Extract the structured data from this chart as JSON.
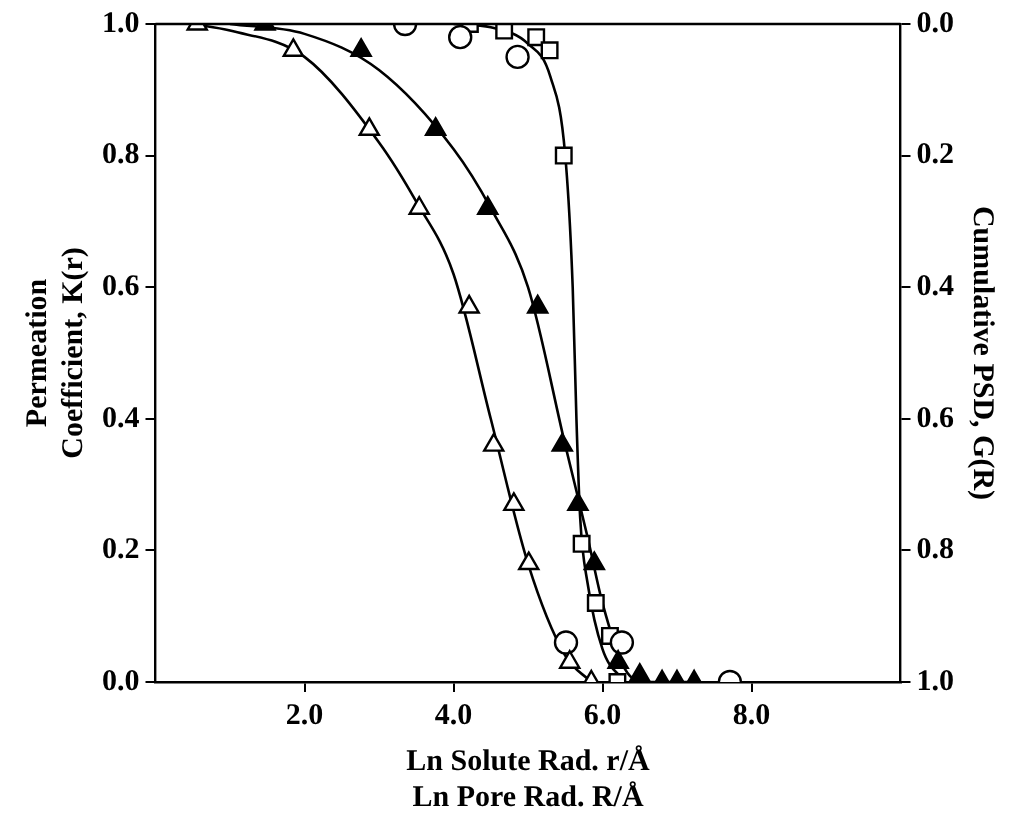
{
  "chart_data": {
    "type": "scatter",
    "xlabel": "Ln Solute Rad. r/Å\nLn Pore Rad. R/Å",
    "ylabel": "Permeation\nCoefficient, K(r)",
    "y2label": "Cumulative PSD, G(R)",
    "xlim": [
      0,
      10
    ],
    "xticks": [
      {
        "value": 2,
        "label": "2.0"
      },
      {
        "value": 4,
        "label": "4.0"
      },
      {
        "value": 6,
        "label": "6.0"
      },
      {
        "value": 8,
        "label": "8.0"
      }
    ],
    "ylim": [
      0,
      1
    ],
    "yticks": [
      {
        "value": 0,
        "label": "0.0"
      },
      0.2,
      0.4,
      0.6,
      0.8,
      {
        "value": 1,
        "label": "1.0"
      }
    ],
    "y2lim": [
      1,
      0
    ],
    "y2ticks": [
      {
        "value": 0,
        "label": "0.0"
      },
      0.2,
      0.4,
      0.6,
      0.8,
      {
        "value": 1,
        "label": "1.0"
      }
    ],
    "grid": false,
    "legend": false,
    "series": [
      {
        "type": "scatter",
        "marker": "triangle",
        "color": "#ffffff",
        "x": [
          0.56,
          1.85,
          2.87,
          3.54,
          4.21,
          4.54,
          4.81,
          5.01,
          5.56,
          5.85
        ],
        "values": [
          1.0,
          0.96,
          0.84,
          0.72,
          0.57,
          0.36,
          0.27,
          0.18,
          0.03,
          0.0
        ]
      },
      {
        "type": "scatter",
        "marker": "triangle",
        "color": "#000000",
        "x": [
          1.47,
          2.76,
          3.76,
          4.46,
          5.13,
          5.46,
          5.67,
          5.89,
          6.21,
          6.5,
          6.8,
          7.0,
          7.23
        ],
        "values": [
          1.0,
          0.96,
          0.84,
          0.72,
          0.57,
          0.36,
          0.27,
          0.18,
          0.03,
          0.01,
          0.0,
          0.0,
          0.0
        ]
      },
      {
        "type": "scatter",
        "marker": "circle",
        "color": "#ffffff",
        "x": [
          3.35,
          4.09,
          4.86,
          5.51,
          6.26,
          7.71
        ],
        "values": [
          1.0,
          0.98,
          0.95,
          0.06,
          0.06,
          0.0
        ]
      },
      {
        "type": "scatter",
        "marker": "square",
        "color": "#ffffff",
        "x": [
          4.22,
          4.68,
          5.11,
          5.29,
          5.48,
          5.72,
          5.91,
          6.1,
          6.2
        ],
        "values": [
          1.0,
          0.99,
          0.98,
          0.96,
          0.8,
          0.21,
          0.12,
          0.07,
          0.0
        ]
      },
      {
        "type": "line",
        "marker": "none",
        "color": "#000000",
        "x": [
          0.5,
          1.0,
          2.0,
          3.0,
          3.5,
          4.0,
          4.5,
          5.0,
          5.5,
          5.85
        ],
        "values": [
          1.0,
          0.99,
          0.95,
          0.82,
          0.73,
          0.62,
          0.4,
          0.18,
          0.04,
          0.0
        ]
      },
      {
        "type": "line",
        "marker": "none",
        "color": "#000000",
        "x": [
          1.0,
          2.0,
          3.0,
          4.0,
          4.5,
          5.0,
          5.5,
          5.8,
          6.0,
          6.3,
          6.6,
          7.3
        ],
        "values": [
          1.0,
          0.985,
          0.93,
          0.81,
          0.72,
          0.6,
          0.36,
          0.22,
          0.12,
          0.02,
          0.0,
          0.0
        ]
      },
      {
        "type": "line",
        "marker": "none",
        "color": "#000000",
        "x": [
          4.0,
          4.5,
          5.0,
          5.3,
          5.5,
          5.6,
          5.65,
          5.7,
          5.8,
          6.0,
          6.3
        ],
        "values": [
          1.0,
          0.995,
          0.97,
          0.92,
          0.8,
          0.6,
          0.4,
          0.25,
          0.15,
          0.05,
          0.0
        ]
      }
    ]
  }
}
